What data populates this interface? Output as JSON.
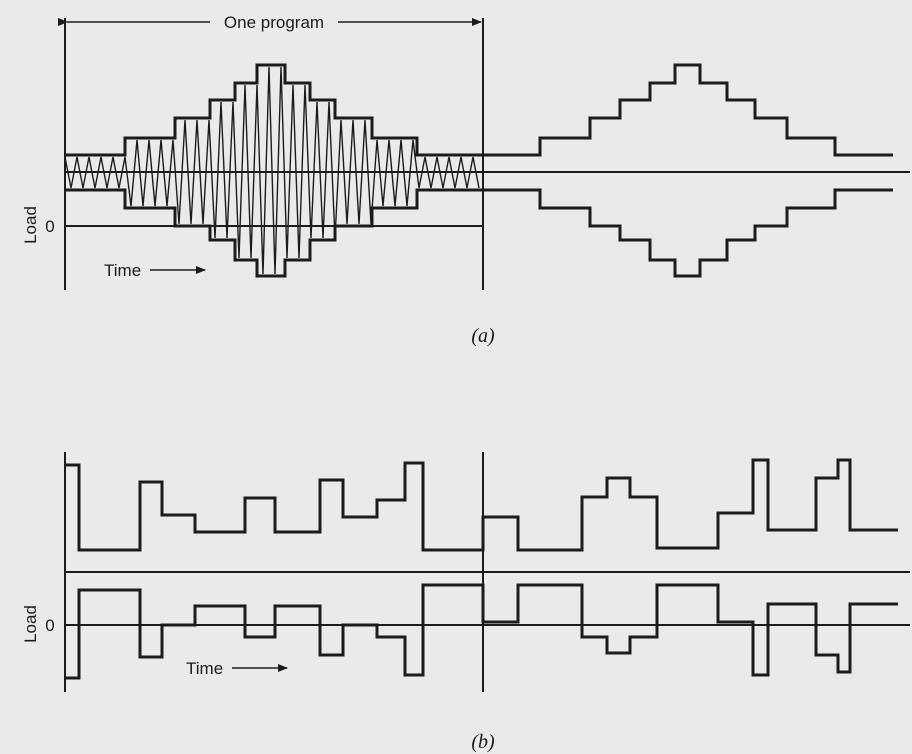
{
  "panel_a": {
    "program_label": "One program",
    "y_label": "Load",
    "zero_label": "0",
    "time_label": "Time",
    "caption": "(a)"
  },
  "panel_b": {
    "y_label": "Load",
    "zero_label": "0",
    "time_label": "Time",
    "caption": "(b)"
  },
  "colors": {
    "ink": "#1c1c1c",
    "paper": "#eaeaea"
  }
}
